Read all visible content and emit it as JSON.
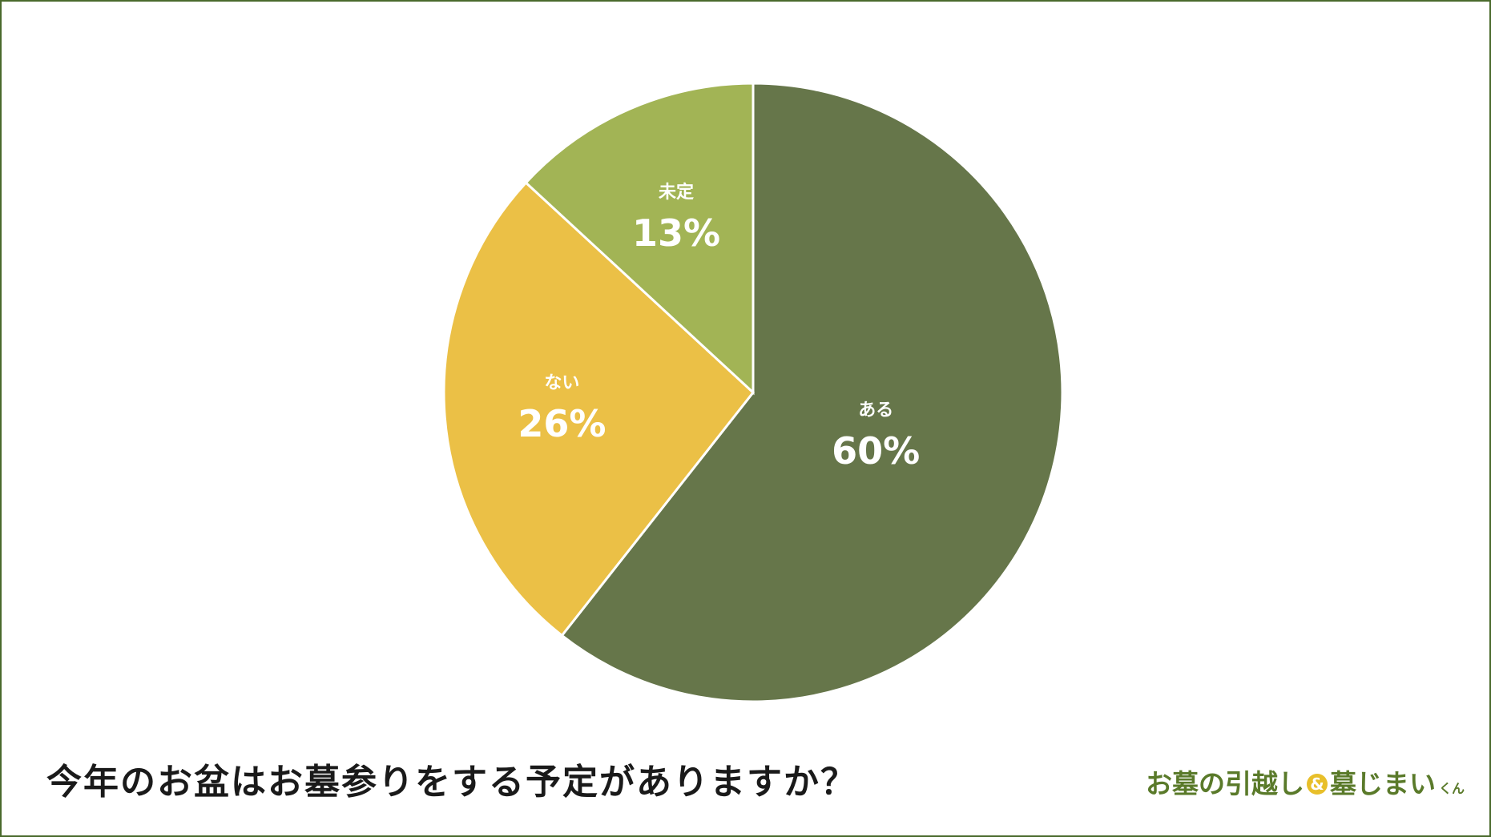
{
  "title": "今年のお盆はお墓参りをする予定がありますか？",
  "logo": {
    "part1": "お墓の引越し",
    "amp": "&",
    "part2": "墓じまい",
    "suffix": "くん"
  },
  "colors": {
    "frame": "#4a6a2c",
    "slice_aru": "#66764a",
    "slice_nai": "#ebc046",
    "slice_mitei": "#a2b455",
    "label": "#ffffff",
    "logo_green": "#5a7a2a",
    "logo_yellow": "#e8bf2a"
  },
  "chart_data": {
    "type": "pie",
    "title": "今年のお盆はお墓参りをする予定がありますか？",
    "start": "12 o'clock, clockwise",
    "slices": [
      {
        "label": "ある",
        "value": 60,
        "value_label": "60%",
        "color": "#66764a"
      },
      {
        "label": "ない",
        "value": 26,
        "value_label": "26%",
        "color": "#ebc046"
      },
      {
        "label": "未定",
        "value": 13,
        "value_label": "13%",
        "color": "#a2b455"
      }
    ]
  }
}
